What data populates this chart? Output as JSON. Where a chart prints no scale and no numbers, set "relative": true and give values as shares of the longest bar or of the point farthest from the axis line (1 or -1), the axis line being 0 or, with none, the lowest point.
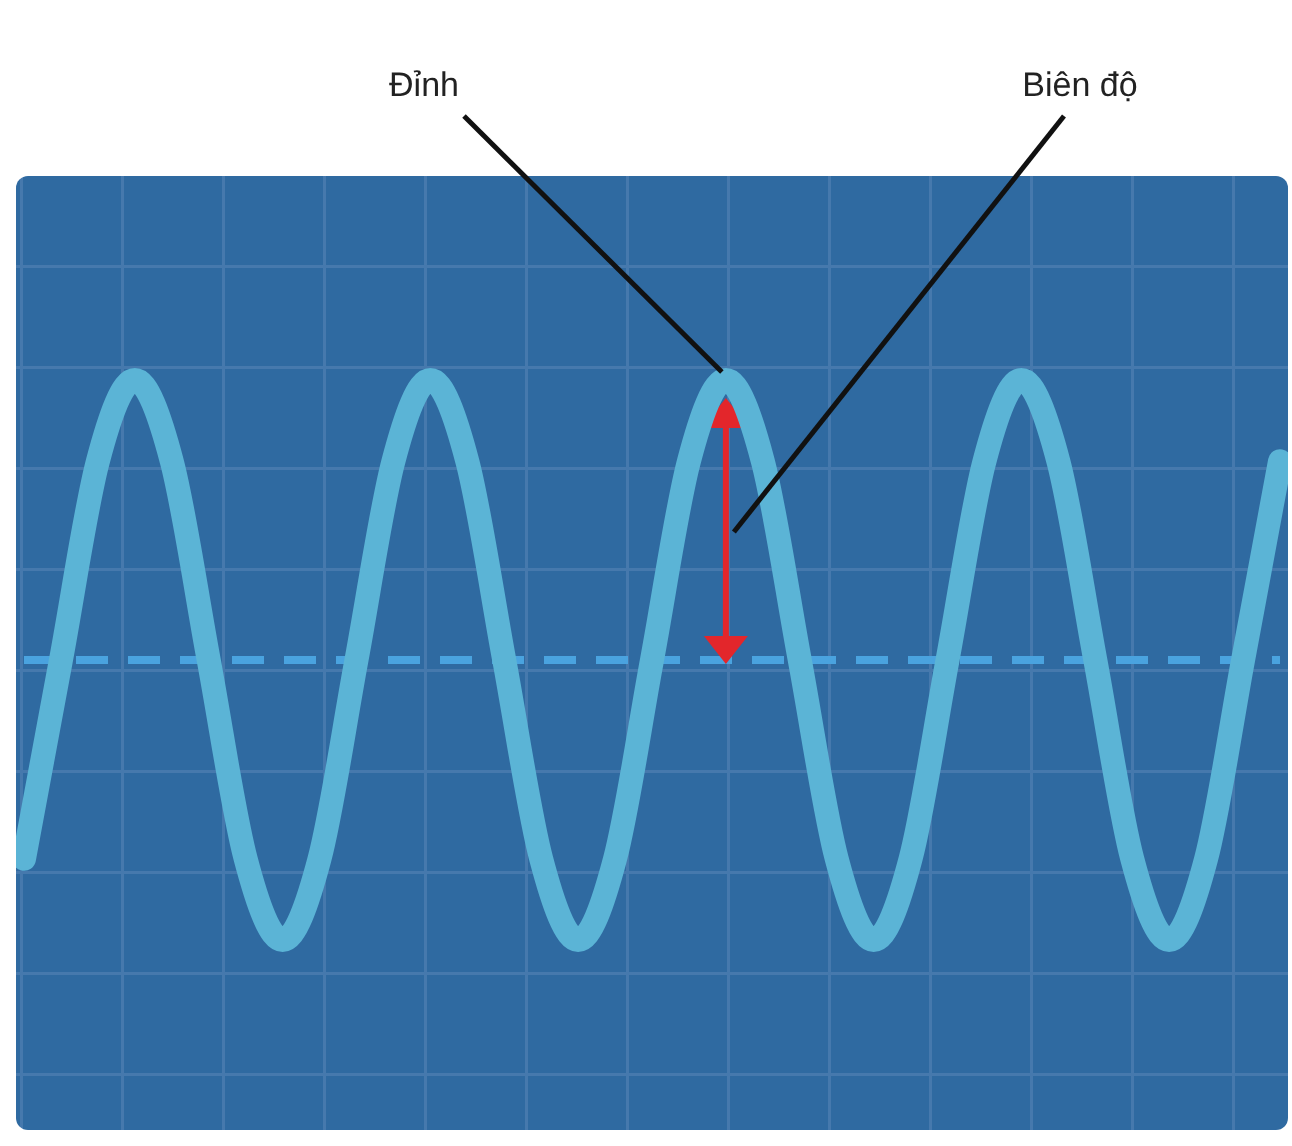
{
  "chart_data": {
    "type": "line",
    "relative": true,
    "color": "#5bb4d6",
    "categories": [
      null,
      null,
      null,
      null,
      null,
      null,
      null,
      null,
      null,
      null,
      null,
      null,
      null,
      null,
      null,
      null,
      null,
      null,
      null,
      null,
      null,
      null,
      null,
      null,
      null,
      null,
      null,
      null,
      null,
      null,
      null,
      null,
      null,
      null,
      null
    ],
    "values": [
      -0.71,
      0,
      0.71,
      1,
      0.71,
      0,
      -0.71,
      -1,
      -0.71,
      0,
      0.71,
      1,
      0.71,
      0,
      -0.71,
      -1,
      -0.71,
      0,
      0.71,
      1,
      0.71,
      0,
      -0.71,
      -1,
      -0.71,
      0,
      0.71,
      1,
      0.71,
      0,
      -0.71,
      -1,
      -0.71,
      0,
      0.71
    ],
    "ref_lines": [
      {
        "axis": "y",
        "value": 0,
        "color": "#4aa3df",
        "line_style": "dashed"
      }
    ],
    "annotations": [
      "Đỉnh",
      "Biên độ"
    ]
  }
}
